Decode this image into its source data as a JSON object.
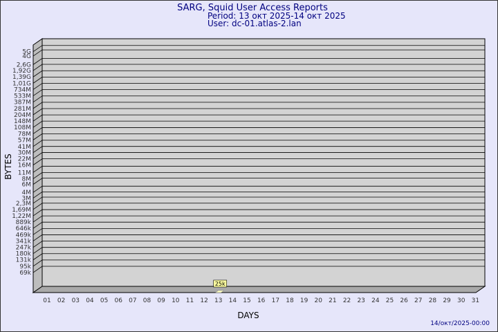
{
  "chart_data": {
    "type": "bar",
    "title": "SARG, Squid User Access Reports",
    "subtitle": [
      "Period: 13 окт 2025-14 окт 2025",
      "User: dc-01.atlas-2.lan"
    ],
    "x_label": "DAYS",
    "y_label": "BYTES",
    "annotation": "14/окт/2025-00:00",
    "categories": [
      "01",
      "02",
      "03",
      "04",
      "05",
      "06",
      "07",
      "08",
      "09",
      "10",
      "11",
      "12",
      "13",
      "14",
      "15",
      "16",
      "17",
      "18",
      "19",
      "20",
      "21",
      "22",
      "23",
      "24",
      "25",
      "26",
      "27",
      "28",
      "29",
      "30",
      "31"
    ],
    "values": [
      null,
      null,
      null,
      null,
      null,
      null,
      null,
      null,
      null,
      null,
      null,
      null,
      25000,
      null,
      null,
      null,
      null,
      null,
      null,
      null,
      null,
      null,
      null,
      null,
      null,
      null,
      null,
      null,
      null,
      null,
      null
    ],
    "value_labels": [
      null,
      null,
      null,
      null,
      null,
      null,
      null,
      null,
      null,
      null,
      null,
      null,
      "25k",
      null,
      null,
      null,
      null,
      null,
      null,
      null,
      null,
      null,
      null,
      null,
      null,
      null,
      null,
      null,
      null,
      null,
      null
    ],
    "color": "#ffffc0",
    "log_scale": true,
    "grid": true,
    "ylim": [
      25000,
      5900000000
    ],
    "yticks": [
      {
        "value": 69000,
        "label": "69k"
      },
      {
        "value": 95000,
        "label": "95k"
      },
      {
        "value": 131000,
        "label": "131k"
      },
      {
        "value": 180000,
        "label": "180k"
      },
      {
        "value": 247000,
        "label": "247k"
      },
      {
        "value": 341000,
        "label": "341k"
      },
      {
        "value": 469000,
        "label": "469k"
      },
      {
        "value": 646000,
        "label": "646k"
      },
      {
        "value": 889000,
        "label": "889k"
      },
      {
        "value": 1220000,
        "label": "1,22M"
      },
      {
        "value": 1690000,
        "label": "1,69M"
      },
      {
        "value": 2300000,
        "label": "2,3M"
      },
      {
        "value": 3000000,
        "label": "3M"
      },
      {
        "value": 4000000,
        "label": "4M"
      },
      {
        "value": 6000000,
        "label": "6M"
      },
      {
        "value": 8000000,
        "label": "8M"
      },
      {
        "value": 11000000,
        "label": "11M"
      },
      {
        "value": 16000000,
        "label": "16M"
      },
      {
        "value": 22000000,
        "label": "22M"
      },
      {
        "value": 30000000,
        "label": "30M"
      },
      {
        "value": 41000000,
        "label": "41M"
      },
      {
        "value": 57000000,
        "label": "57M"
      },
      {
        "value": 78000000,
        "label": "78M"
      },
      {
        "value": 108000000,
        "label": "108M"
      },
      {
        "value": 148000000,
        "label": "148M"
      },
      {
        "value": 204000000,
        "label": "204M"
      },
      {
        "value": 281000000,
        "label": "281M"
      },
      {
        "value": 387000000,
        "label": "387M"
      },
      {
        "value": 533000000,
        "label": "533M"
      },
      {
        "value": 734000000,
        "label": "734M"
      },
      {
        "value": 1010000000,
        "label": "1,01G"
      },
      {
        "value": 1390000000,
        "label": "1,39G"
      },
      {
        "value": 1920000000,
        "label": "1,92G"
      },
      {
        "value": 2600000000,
        "label": "2,6G"
      },
      {
        "value": 4000000000,
        "label": "4G"
      },
      {
        "value": 5000000000,
        "label": "5G"
      }
    ]
  }
}
